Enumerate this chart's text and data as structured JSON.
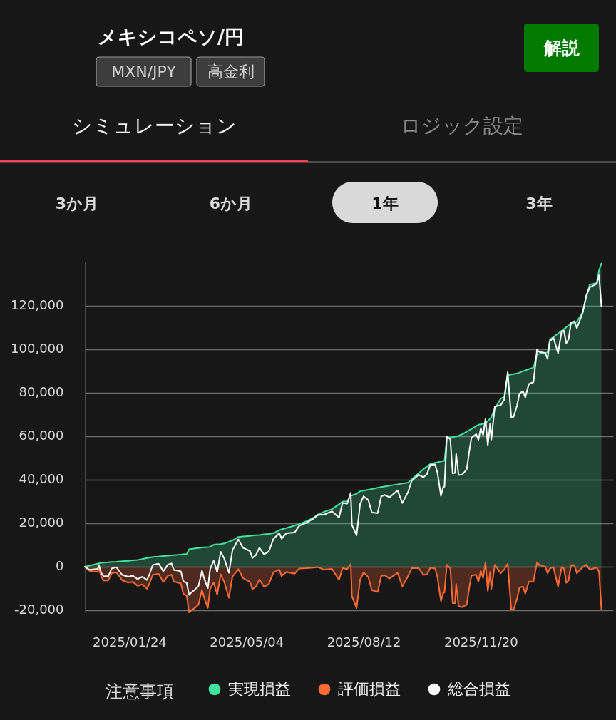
{
  "chart_data": {
    "type": "area",
    "title": "メキシコペソ/円",
    "annotations": [
      "MXN/JPY",
      "高金利",
      "解説",
      "シミュレーション",
      "ロジック設定",
      "3か月",
      "6か月",
      "1年",
      "3年",
      "注意事項"
    ],
    "x": [
      "2024-12-17",
      "2024-12-21",
      "2024-12-28",
      "2024-12-29",
      "2024-12-31",
      "2025-01-02",
      "2025-01-06",
      "2025-01-09",
      "2025-01-13",
      "2025-01-18",
      "2025-01-23",
      "2025-01-27",
      "2025-01-31",
      "2025-02-04",
      "2025-02-08",
      "2025-02-10",
      "2025-02-13",
      "2025-02-18",
      "2025-02-22",
      "2025-02-26",
      "2025-03-01",
      "2025-03-03",
      "2025-03-09",
      "2025-03-11",
      "2025-03-14",
      "2025-03-16",
      "2025-03-18",
      "2025-03-21",
      "2025-03-24",
      "2025-03-27",
      "2025-03-29",
      "2025-04-01",
      "2025-04-03",
      "2025-04-06",
      "2025-04-09",
      "2025-04-12",
      "2025-04-15",
      "2025-04-19",
      "2025-04-22",
      "2025-04-27",
      "2025-05-01",
      "2025-05-07",
      "2025-05-09",
      "2025-05-12",
      "2025-05-15",
      "2025-05-19",
      "2025-05-23",
      "2025-05-27",
      "2025-06-01",
      "2025-06-03",
      "2025-06-07",
      "2025-06-14",
      "2025-06-18",
      "2025-06-24",
      "2025-06-30",
      "2025-07-04",
      "2025-07-09",
      "2025-07-16",
      "2025-07-22",
      "2025-07-25",
      "2025-07-29",
      "2025-08-01",
      "2025-08-02",
      "2025-08-06",
      "2025-08-09",
      "2025-08-12",
      "2025-08-16",
      "2025-08-19",
      "2025-08-24",
      "2025-08-27",
      "2025-08-30",
      "2025-09-03",
      "2025-09-10",
      "2025-09-14",
      "2025-09-19",
      "2025-09-22",
      "2025-09-28",
      "2025-10-02",
      "2025-10-05",
      "2025-10-08",
      "2025-10-12",
      "2025-10-14",
      "2025-10-17",
      "2025-10-19",
      "2025-10-20",
      "2025-10-22",
      "2025-10-25",
      "2025-10-27",
      "2025-10-29",
      "2025-10-30",
      "2025-11-01",
      "2025-11-04",
      "2025-11-08",
      "2025-11-10",
      "2025-11-12",
      "2025-11-16",
      "2025-11-18",
      "2025-11-20",
      "2025-11-22",
      "2025-11-24",
      "2025-11-26",
      "2025-11-28",
      "2025-11-29",
      "2025-12-02",
      "2025-12-07",
      "2025-12-10",
      "2025-12-13",
      "2025-12-16",
      "2025-12-18",
      "2025-12-21",
      "2025-12-23",
      "2025-12-26",
      "2025-12-28",
      "2025-12-31",
      "2026-01-04",
      "2026-01-07",
      "2026-01-09",
      "2026-01-14",
      "2026-01-16",
      "2026-01-18",
      "2026-01-21",
      "2026-01-25",
      "2026-01-28",
      "2026-01-30",
      "2026-02-01",
      "2026-02-03",
      "2026-02-05",
      "2026-02-08",
      "2026-02-10",
      "2026-02-15",
      "2026-02-18",
      "2026-02-21",
      "2026-02-27",
      "2026-03-01",
      "2026-03-03"
    ],
    "series": [
      {
        "name": "実現損益",
        "color": "#42e2a0",
        "values": [
          0,
          500,
          1400,
          1600,
          1800,
          1900,
          2000,
          2200,
          2300,
          2500,
          2700,
          2900,
          3100,
          3500,
          4000,
          4200,
          4500,
          4700,
          4900,
          5100,
          5200,
          5300,
          5600,
          5700,
          5900,
          8000,
          8200,
          8400,
          8600,
          8800,
          8900,
          9000,
          9100,
          10100,
          10300,
          10400,
          10700,
          11500,
          12100,
          13700,
          13900,
          14200,
          14300,
          14500,
          14600,
          14900,
          15100,
          15400,
          16800,
          17200,
          17800,
          18900,
          19600,
          20900,
          22500,
          24000,
          25200,
          26500,
          28700,
          30000,
          30100,
          32800,
          32800,
          33500,
          34700,
          35000,
          35400,
          35700,
          36300,
          36600,
          36900,
          37300,
          37900,
          38300,
          38700,
          40200,
          43000,
          44800,
          46100,
          47300,
          47800,
          48000,
          48400,
          48600,
          48700,
          59000,
          59400,
          59600,
          59800,
          59900,
          60200,
          60900,
          62100,
          62700,
          63300,
          64600,
          65300,
          65500,
          65700,
          65900,
          67000,
          68100,
          68700,
          72800,
          77300,
          78100,
          88100,
          88400,
          88600,
          88900,
          89300,
          89900,
          90300,
          90900,
          91600,
          97800,
          97900,
          98400,
          98600,
          104500,
          105600,
          107300,
          108500,
          109300,
          110200,
          111000,
          111600,
          112200,
          112700,
          117000,
          123800,
          129800,
          130500,
          136400,
          139500
        ]
      },
      {
        "name": "評価損益",
        "color": "#ff6b35",
        "values": [
          0,
          -1900,
          -2400,
          -800,
          -4600,
          -6300,
          -6300,
          -3000,
          -2600,
          -6300,
          -7300,
          -7000,
          -8800,
          -8100,
          -10100,
          -7900,
          -3700,
          -3300,
          -7000,
          -4100,
          -3700,
          -6800,
          -7700,
          -12300,
          -13400,
          -21000,
          -20000,
          -18900,
          -17500,
          -10600,
          -14500,
          -18900,
          -10100,
          -7300,
          -12800,
          -3500,
          -7000,
          -14300,
          -4600,
          -1100,
          -5200,
          -7000,
          -10300,
          -9200,
          -5900,
          -9200,
          -8100,
          -2600,
          -1300,
          -4300,
          -2400,
          -3200,
          -800,
          -700,
          -400,
          -200,
          -1300,
          -1000,
          -6100,
          -700,
          -1100,
          1200,
          -13600,
          -19000,
          -5900,
          -2600,
          -4800,
          -10800,
          -11600,
          -4300,
          -3900,
          -5400,
          -2800,
          -9000,
          -4300,
          -700,
          -700,
          -3700,
          -3600,
          -400,
          -800,
          -4700,
          -15800,
          -11900,
          -11900,
          900,
          -800,
          -16700,
          -16700,
          -8000,
          -18000,
          -18600,
          -17400,
          -10200,
          -4100,
          -3600,
          -6900,
          -1900,
          -5200,
          2000,
          -11100,
          -2400,
          -10200,
          900,
          -3000,
          -1300,
          1400,
          -19700,
          -19700,
          -14700,
          -9700,
          -9100,
          -12400,
          -6900,
          -6700,
          2000,
          900,
          0,
          -3000,
          -800,
          -200,
          -9100,
          -200,
          -800,
          -7400,
          -6300,
          700,
          700,
          -3000,
          -200,
          900,
          -1300,
          -400,
          -2400,
          -19700
        ]
      },
      {
        "name": "総合損益",
        "type": "line",
        "color": "#ffffff",
        "values": [
          0,
          -1400,
          -1000,
          800,
          -2800,
          -4400,
          -4300,
          -800,
          -300,
          -3800,
          -4600,
          -4100,
          -5700,
          -4600,
          -6100,
          -3700,
          800,
          1400,
          -2100,
          1000,
          1500,
          -1500,
          -2100,
          -6600,
          -7500,
          -13000,
          -11800,
          -10500,
          -8900,
          -1800,
          -5600,
          -9900,
          -1000,
          2800,
          -2500,
          6900,
          3700,
          -2800,
          7500,
          12600,
          8700,
          7200,
          4000,
          5300,
          8700,
          5700,
          7000,
          12800,
          15500,
          12900,
          15400,
          15700,
          18800,
          20200,
          22100,
          23800,
          23900,
          25500,
          22600,
          29300,
          29000,
          34000,
          19200,
          14500,
          28800,
          32400,
          30600,
          24900,
          24700,
          32300,
          33000,
          31900,
          35100,
          29300,
          34400,
          39500,
          42300,
          41100,
          42500,
          46900,
          47000,
          43300,
          32600,
          36700,
          36800,
          59900,
          58600,
          42900,
          43100,
          51900,
          42200,
          42300,
          44700,
          52500,
          59200,
          61000,
          58400,
          63600,
          60500,
          67900,
          55900,
          65700,
          58500,
          73700,
          74300,
          76800,
          89500,
          68700,
          68900,
          74200,
          79600,
          80800,
          77900,
          84000,
          84900,
          99800,
          98800,
          98400,
          95600,
          103700,
          105400,
          98200,
          108300,
          108500,
          102800,
          104700,
          112300,
          112900,
          109700,
          116800,
          124700,
          128500,
          130100,
          134000,
          119800
        ]
      }
    ],
    "xlim": [
      "2024-12-17",
      "2026-03-13"
    ],
    "xticks": [
      {
        "value": "2025-01-24",
        "label": "2025/01/24"
      },
      {
        "value": "2025-05-04",
        "label": "2025/05/04"
      },
      {
        "value": "2025-08-12",
        "label": "2025/08/12"
      },
      {
        "value": "2025-11-20",
        "label": "2025/11/20"
      }
    ],
    "ylim": [
      -21000,
      140000
    ],
    "yticks": [
      {
        "value": -20000,
        "label": "-20,000"
      },
      0,
      {
        "value": 20000,
        "label": "20,000"
      },
      {
        "value": 40000,
        "label": "40,000"
      },
      {
        "value": 60000,
        "label": "60,000"
      },
      {
        "value": 80000,
        "label": "80,000"
      },
      {
        "value": 100000,
        "label": "100,000"
      },
      {
        "value": 120000,
        "label": "120,000"
      }
    ],
    "grid": "y",
    "legend": "bottom"
  }
}
